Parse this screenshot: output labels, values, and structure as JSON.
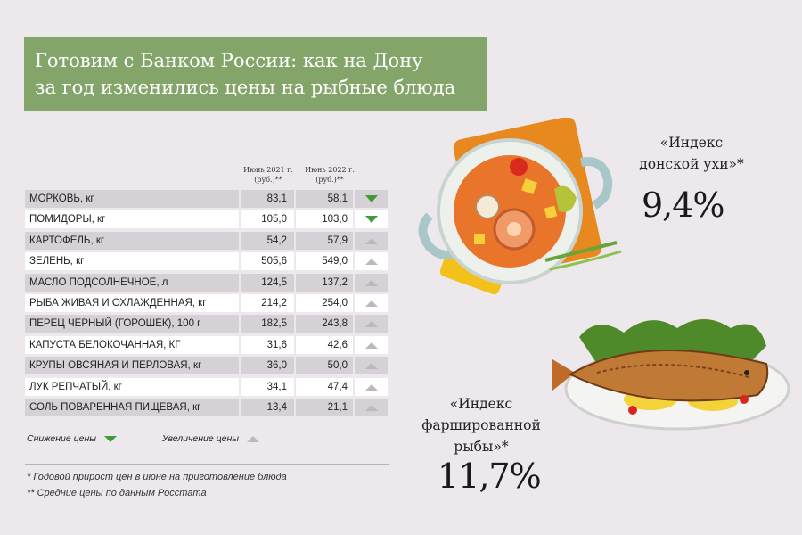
{
  "title": {
    "line1": "Готовим с Банком России: как на Дону",
    "line2": "за год изменились цены на рыбные блюда"
  },
  "columns": {
    "june2021_line1": "Июнь 2021 г.",
    "june2021_line2": "(руб.)**",
    "june2022_line1": "Июнь 2022 г.",
    "june2022_line2": "(руб.)**"
  },
  "rows": [
    {
      "name": "МОРКОВЬ, кг",
      "v2021": "83,1",
      "v2022": "58,1",
      "trend": "down"
    },
    {
      "name": "ПОМИДОРЫ, кг",
      "v2021": "105,0",
      "v2022": "103,0",
      "trend": "down"
    },
    {
      "name": "КАРТОФЕЛЬ, кг",
      "v2021": "54,2",
      "v2022": "57,9",
      "trend": "up"
    },
    {
      "name": "ЗЕЛЕНЬ, кг",
      "v2021": "505,6",
      "v2022": "549,0",
      "trend": "up"
    },
    {
      "name": "МАСЛО ПОДСОЛНЕЧНОЕ, л",
      "v2021": "124,5",
      "v2022": "137,2",
      "trend": "up"
    },
    {
      "name": "РЫБА ЖИВАЯ И ОХЛАЖДЕННАЯ, кг",
      "v2021": "214,2",
      "v2022": "254,0",
      "trend": "up"
    },
    {
      "name": "ПЕРЕЦ ЧЕРНЫЙ (ГОРОШЕК), 100 г",
      "v2021": "182,5",
      "v2022": "243,8",
      "trend": "up"
    },
    {
      "name": "КАПУСТА БЕЛОКОЧАННАЯ, КГ",
      "v2021": "31,6",
      "v2022": "42,6",
      "trend": "up"
    },
    {
      "name": "КРУПЫ ОВСЯНАЯ И ПЕРЛОВАЯ, кг",
      "v2021": "36,0",
      "v2022": "50,0",
      "trend": "up"
    },
    {
      "name": "ЛУК РЕПЧАТЫЙ, кг",
      "v2021": "34,1",
      "v2022": "47,4",
      "trend": "up"
    },
    {
      "name": "СОЛЬ ПОВАРЕННАЯ ПИЩЕВАЯ, кг",
      "v2021": "13,4",
      "v2022": "21,1",
      "trend": "up"
    }
  ],
  "legend": {
    "decrease": "Снижение цены",
    "increase": "Увеличение цены"
  },
  "notes": {
    "note1": "* Годовой прирост цен в июне на приготовление блюда",
    "note2": "** Средние цены по данным Росстата"
  },
  "index_ukha": {
    "label_line1": "«Индекс",
    "label_line2": "донской ухи»*",
    "value": "9,4%"
  },
  "index_fish": {
    "label_line1": "«Индекс",
    "label_line2": "фаршированной",
    "label_line3": "рыбы»*",
    "value": "11,7%"
  },
  "colors": {
    "title_bg": "#84a56a",
    "page_bg": "#ece8ec",
    "decrease": "#3f9a3a",
    "increase": "#bdb8bd"
  }
}
